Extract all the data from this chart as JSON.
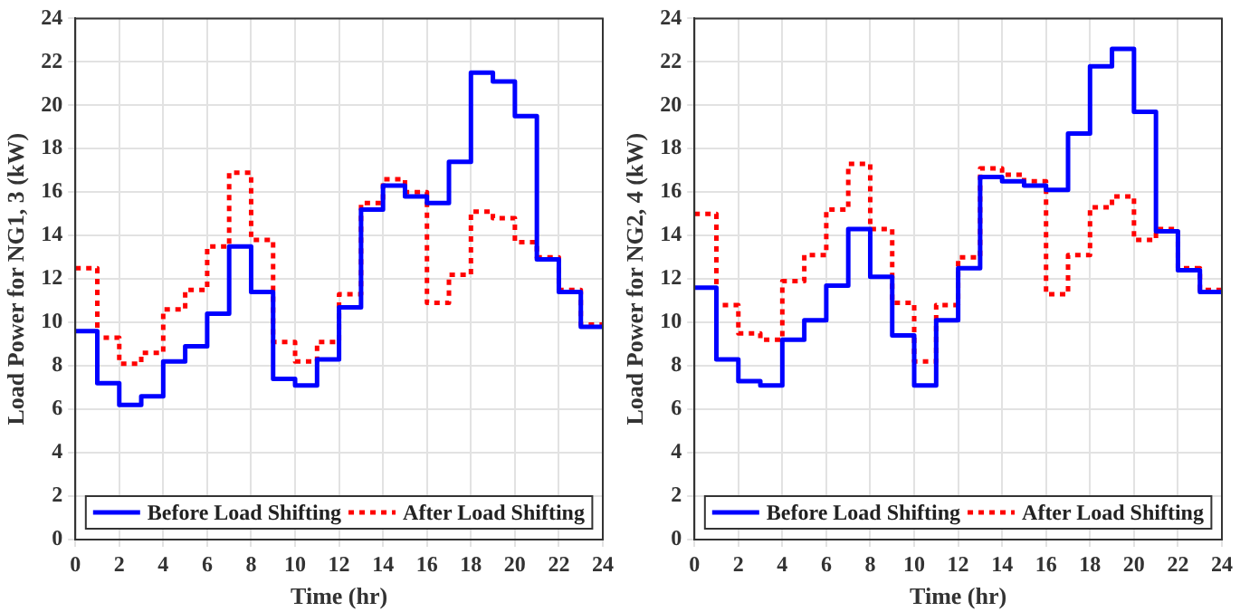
{
  "chart_data": [
    {
      "type": "step",
      "xlabel": "Time (hr)",
      "ylabel": "Load Power for NG1, 3 (kW)",
      "x": [
        0,
        1,
        2,
        3,
        4,
        5,
        6,
        7,
        8,
        9,
        10,
        11,
        12,
        13,
        14,
        15,
        16,
        17,
        18,
        19,
        20,
        21,
        22,
        23,
        24
      ],
      "xlim": [
        0,
        24
      ],
      "xticks": [
        0,
        2,
        4,
        6,
        8,
        10,
        12,
        14,
        16,
        18,
        20,
        22,
        24
      ],
      "ylim": [
        0,
        24
      ],
      "yticks": [
        0,
        2,
        4,
        6,
        8,
        10,
        12,
        14,
        16,
        18,
        20,
        22,
        24
      ],
      "grid": true,
      "legend": "bottom",
      "marker": "none",
      "series": [
        {
          "name": "Before Load Shifting",
          "color": "#0000ff",
          "line_style": "solid",
          "values": [
            9.6,
            7.2,
            6.2,
            6.6,
            8.2,
            8.9,
            10.4,
            13.5,
            11.4,
            7.4,
            7.1,
            8.3,
            10.7,
            15.2,
            16.3,
            15.8,
            15.5,
            17.4,
            21.5,
            21.1,
            19.5,
            12.9,
            11.4,
            9.8,
            9.8
          ]
        },
        {
          "name": "After Load Shifting",
          "color": "#ff0000",
          "line_style": "dotted",
          "values": [
            12.5,
            9.3,
            8.1,
            8.6,
            10.6,
            11.5,
            13.5,
            16.9,
            13.8,
            9.1,
            8.2,
            9.1,
            11.3,
            15.5,
            16.6,
            16.0,
            10.9,
            12.2,
            15.1,
            14.8,
            13.7,
            13.0,
            11.5,
            9.9,
            9.9
          ]
        }
      ]
    },
    {
      "type": "step",
      "xlabel": "Time (hr)",
      "ylabel": "Load Power for NG2, 4 (kW)",
      "x": [
        0,
        1,
        2,
        3,
        4,
        5,
        6,
        7,
        8,
        9,
        10,
        11,
        12,
        13,
        14,
        15,
        16,
        17,
        18,
        19,
        20,
        21,
        22,
        23,
        24
      ],
      "xlim": [
        0,
        24
      ],
      "xticks": [
        0,
        2,
        4,
        6,
        8,
        10,
        12,
        14,
        16,
        18,
        20,
        22,
        24
      ],
      "ylim": [
        0,
        24
      ],
      "yticks": [
        0,
        2,
        4,
        6,
        8,
        10,
        12,
        14,
        16,
        18,
        20,
        22,
        24
      ],
      "grid": true,
      "legend": "bottom",
      "marker": "none",
      "series": [
        {
          "name": "Before Load Shifting",
          "color": "#0000ff",
          "line_style": "solid",
          "values": [
            11.6,
            8.3,
            7.3,
            7.1,
            9.2,
            10.1,
            11.7,
            14.3,
            12.1,
            9.4,
            7.1,
            10.1,
            12.5,
            16.7,
            16.5,
            16.3,
            16.1,
            18.7,
            21.8,
            22.6,
            19.7,
            14.2,
            12.4,
            11.4,
            11.4
          ]
        },
        {
          "name": "After Load Shifting",
          "color": "#ff0000",
          "line_style": "dotted",
          "values": [
            15.0,
            10.8,
            9.5,
            9.2,
            11.9,
            13.1,
            15.2,
            17.3,
            14.3,
            10.9,
            8.2,
            10.8,
            13.0,
            17.1,
            16.8,
            16.5,
            11.3,
            13.1,
            15.3,
            15.8,
            13.8,
            14.3,
            12.5,
            11.5,
            11.5
          ]
        }
      ]
    }
  ]
}
